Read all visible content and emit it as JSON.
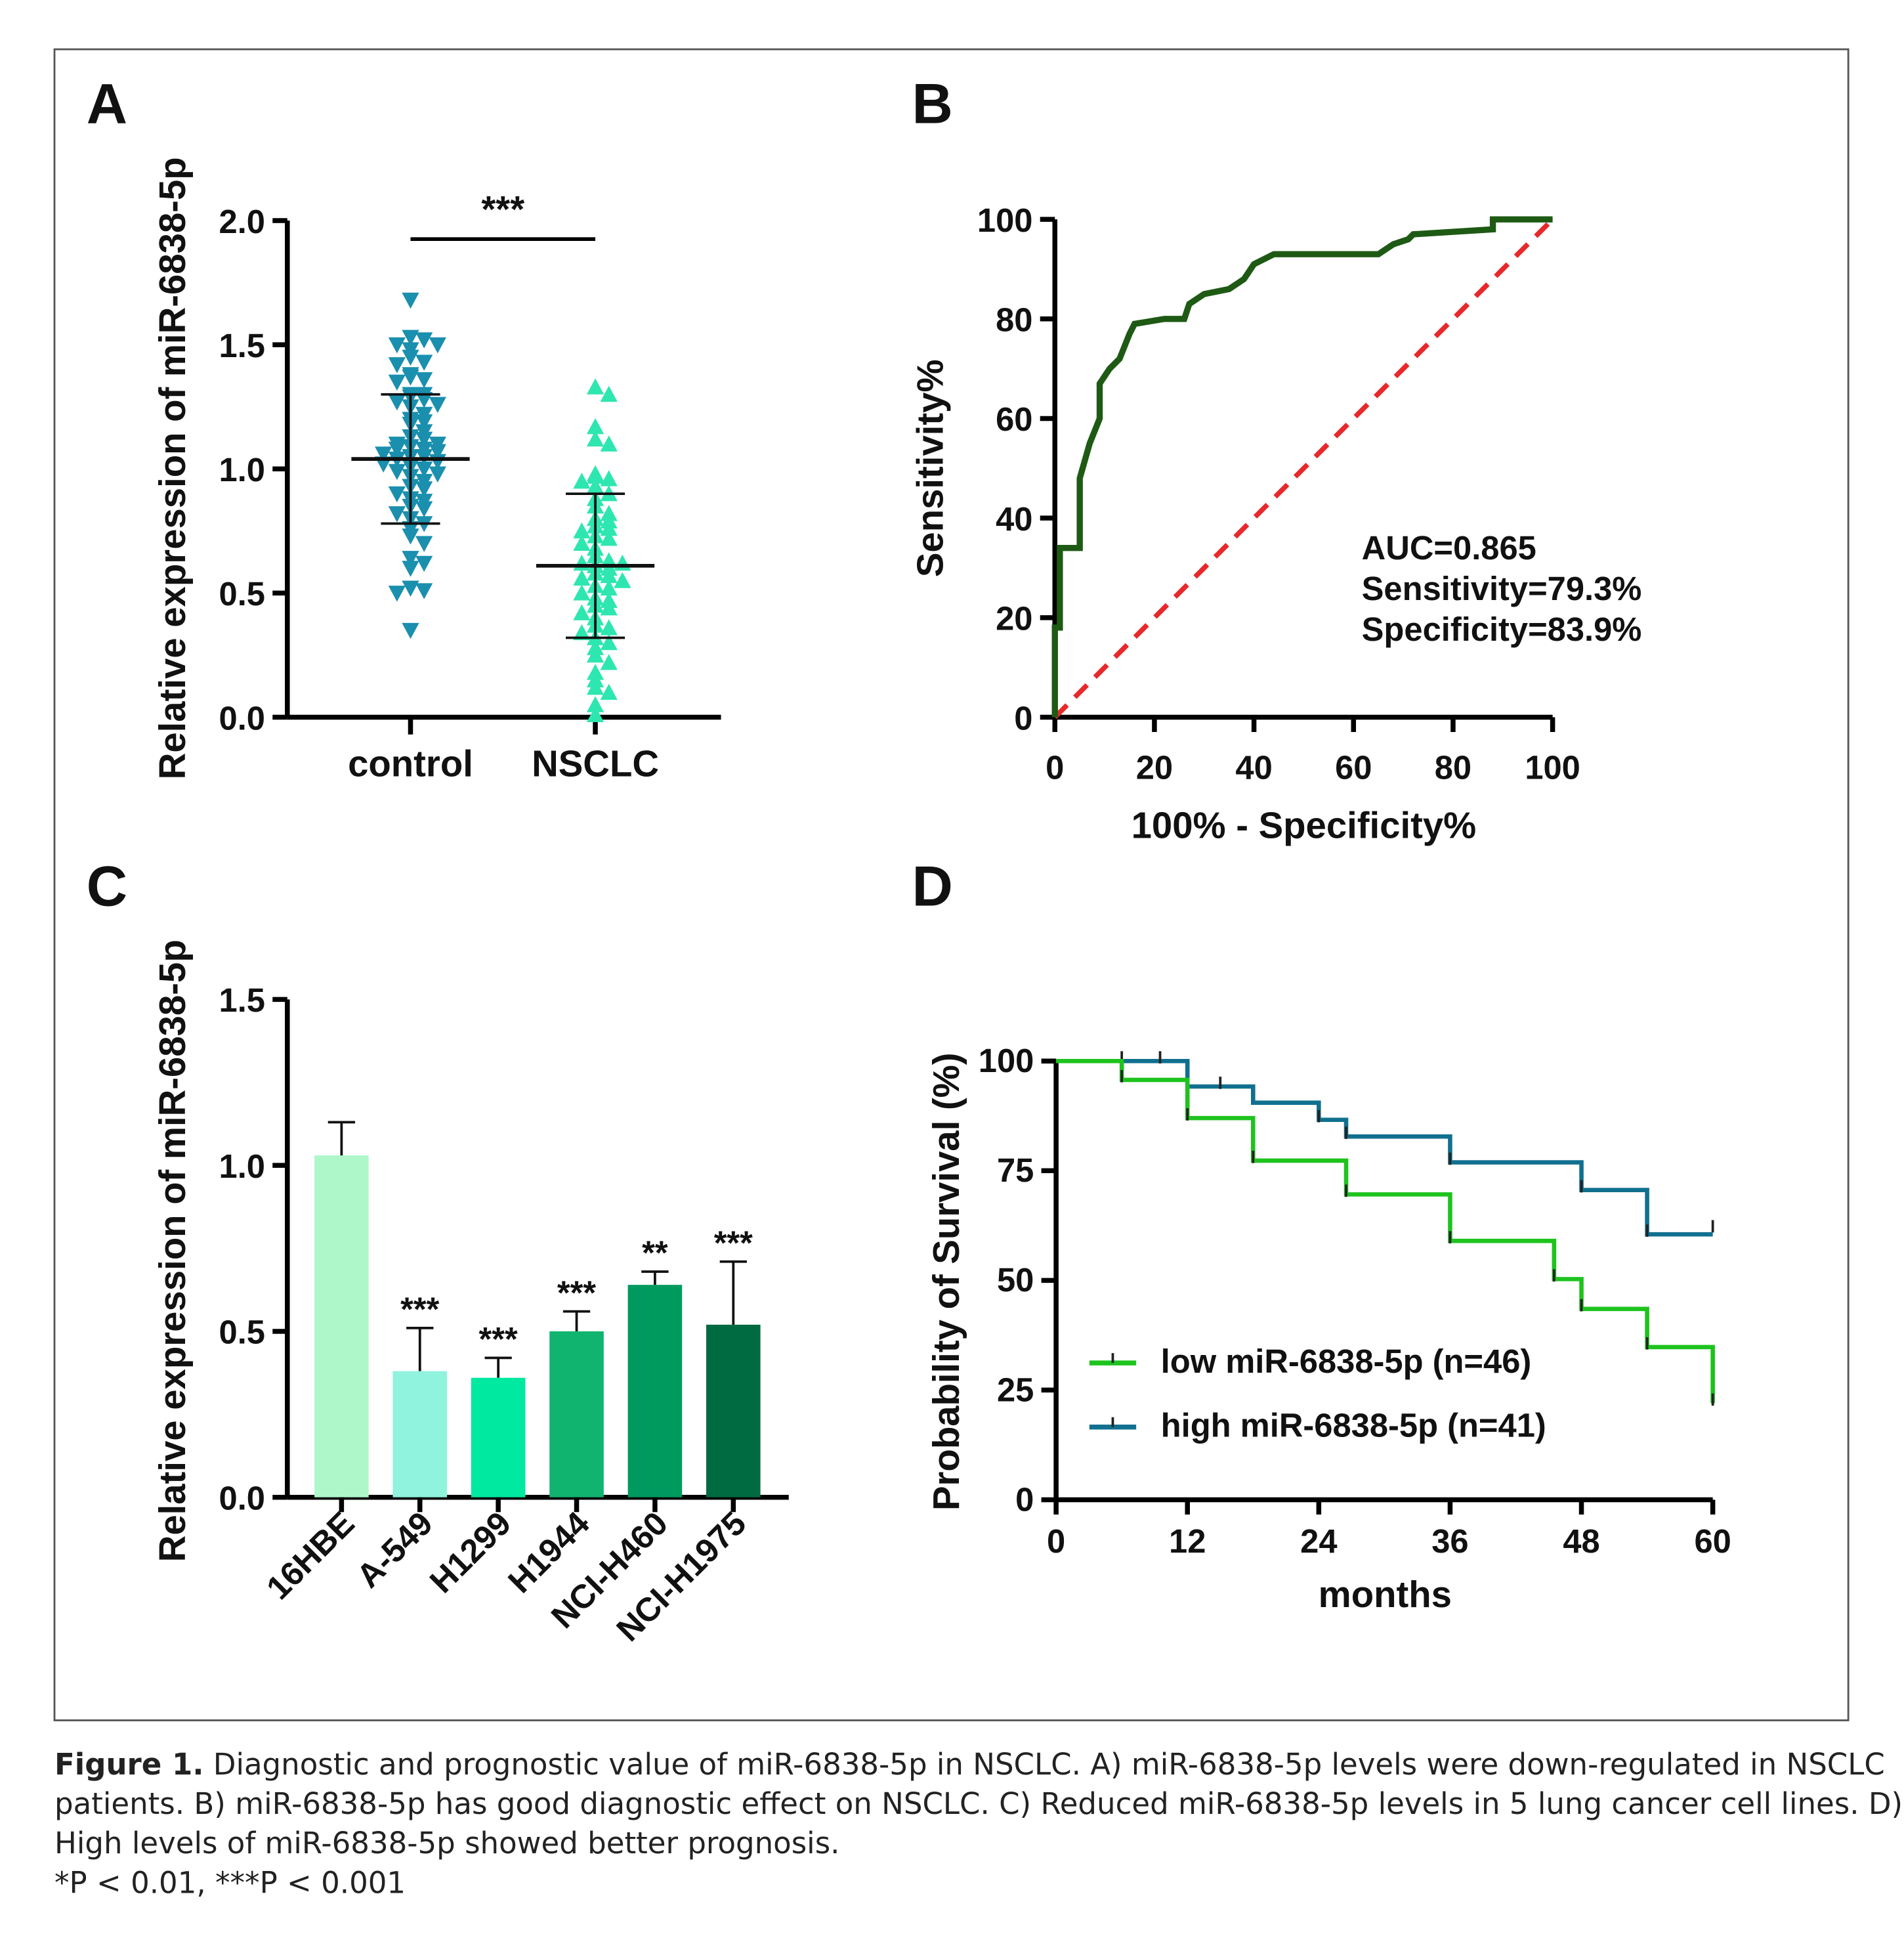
{
  "panels": {
    "a": "A",
    "b": "B",
    "c": "C",
    "d": "D"
  },
  "chart_data": [
    {
      "type": "scatter",
      "panel": "A",
      "ylabel": "Relative expression of miR-6838-5p",
      "categories": [
        "control",
        "NSCLC"
      ],
      "ylim": [
        0,
        2.0
      ],
      "yticks": [
        "0.0",
        "0.5",
        "1.0",
        "1.5",
        "2.0"
      ],
      "significance": "***",
      "colors": [
        "#1a8fae",
        "#2ee6b0"
      ],
      "series": [
        {
          "values": [
            1.68,
            1.53,
            1.52,
            1.5,
            1.5,
            1.48,
            1.45,
            1.43,
            1.42,
            1.38,
            1.37,
            1.36,
            1.35,
            1.3,
            1.3,
            1.29,
            1.28,
            1.27,
            1.26,
            1.25,
            1.22,
            1.2,
            1.19,
            1.18,
            1.15,
            1.13,
            1.12,
            1.1,
            1.1,
            1.09,
            1.08,
            1.08,
            1.07,
            1.06,
            1.05,
            1.05,
            1.04,
            1.03,
            1.02,
            1.01,
            1.0,
            0.99,
            0.98,
            0.97,
            0.95,
            0.93,
            0.92,
            0.9,
            0.88,
            0.87,
            0.85,
            0.84,
            0.82,
            0.8,
            0.78,
            0.76,
            0.73,
            0.7,
            0.64,
            0.62,
            0.6,
            0.52,
            0.51,
            0.5,
            0.35
          ],
          "mean": 1.04,
          "sd_low": 0.78,
          "sd_high": 1.3
        },
        {
          "values": [
            1.33,
            1.3,
            1.17,
            1.12,
            1.1,
            0.98,
            0.97,
            0.96,
            0.95,
            0.93,
            0.9,
            0.88,
            0.85,
            0.82,
            0.8,
            0.79,
            0.77,
            0.76,
            0.75,
            0.73,
            0.72,
            0.7,
            0.68,
            0.65,
            0.63,
            0.62,
            0.62,
            0.61,
            0.6,
            0.58,
            0.57,
            0.56,
            0.55,
            0.53,
            0.52,
            0.5,
            0.48,
            0.47,
            0.45,
            0.44,
            0.42,
            0.4,
            0.37,
            0.36,
            0.34,
            0.32,
            0.3,
            0.28,
            0.25,
            0.22,
            0.18,
            0.15,
            0.12,
            0.1,
            0.05,
            0.01
          ],
          "mean": 0.61,
          "sd_low": 0.32,
          "sd_high": 0.9
        }
      ]
    },
    {
      "type": "line",
      "panel": "B",
      "xlabel": "100% - Specificity%",
      "ylabel": "Sensitivity%",
      "xlim": [
        0,
        100
      ],
      "ylim": [
        0,
        100
      ],
      "xticks": [
        "0",
        "20",
        "40",
        "60",
        "80",
        "100"
      ],
      "yticks": [
        "0",
        "20",
        "40",
        "60",
        "80",
        "100"
      ],
      "roc_color": "#1e5a14",
      "reference_color": "#e8282a",
      "roc": [
        [
          0,
          0
        ],
        [
          0,
          18
        ],
        [
          1,
          18
        ],
        [
          1,
          34
        ],
        [
          5,
          34
        ],
        [
          5,
          48
        ],
        [
          7,
          55
        ],
        [
          9,
          60
        ],
        [
          9,
          67
        ],
        [
          11,
          70
        ],
        [
          13,
          72
        ],
        [
          15,
          77
        ],
        [
          16,
          79
        ],
        [
          22,
          80
        ],
        [
          26,
          80
        ],
        [
          27,
          83
        ],
        [
          30,
          85
        ],
        [
          35,
          86
        ],
        [
          38,
          88
        ],
        [
          40,
          91
        ],
        [
          44,
          93
        ],
        [
          65,
          93
        ],
        [
          68,
          95
        ],
        [
          71,
          96
        ],
        [
          72,
          97
        ],
        [
          88,
          98
        ],
        [
          88,
          100
        ],
        [
          100,
          100
        ]
      ],
      "annotations": [
        "AUC=0.865",
        "Sensitivity=79.3%",
        "Specificity=83.9%"
      ]
    },
    {
      "type": "bar",
      "panel": "C",
      "ylabel": "Relative expression of miR-6838-5p",
      "ylim": [
        0,
        1.5
      ],
      "yticks": [
        "0.0",
        "0.5",
        "1.0",
        "1.5"
      ],
      "categories": [
        "16HBE",
        "A-549",
        "H1299",
        "H1944",
        "NCI-H460",
        "NCI-H1975"
      ],
      "values": [
        1.03,
        0.38,
        0.36,
        0.5,
        0.64,
        0.52
      ],
      "error_upper": [
        1.13,
        0.51,
        0.42,
        0.56,
        0.68,
        0.71
      ],
      "significance": [
        "",
        "***",
        "***",
        "***",
        "**",
        "***"
      ],
      "colors": [
        "#aef7c9",
        "#8ff3dd",
        "#00e9a0",
        "#10b46e",
        "#009a5f",
        "#006b41"
      ]
    },
    {
      "type": "line",
      "panel": "D",
      "xlabel": "months",
      "ylabel": "Probability of Survival (%)",
      "xlim": [
        0,
        60
      ],
      "ylim": [
        0,
        100
      ],
      "xticks": [
        "0",
        "12",
        "24",
        "36",
        "48",
        "60"
      ],
      "yticks": [
        "0",
        "25",
        "50",
        "75",
        "100"
      ],
      "legend": "inside-bottom-left",
      "series": [
        {
          "name": "low   miR-6838-5p (n=46)",
          "color": "#1ec31e",
          "steps": [
            [
              0,
              100
            ],
            [
              6,
              95.7
            ],
            [
              12,
              87
            ],
            [
              18,
              77.3
            ],
            [
              26.5,
              69.6
            ],
            [
              36,
              59
            ],
            [
              45.5,
              50.3
            ],
            [
              48,
              43.5
            ],
            [
              54,
              34.8
            ],
            [
              60,
              22
            ]
          ],
          "censored": [
            [
              6,
              95.7
            ],
            [
              12,
              87
            ],
            [
              18,
              77.3
            ],
            [
              26.5,
              69.6
            ],
            [
              36,
              59
            ],
            [
              45.5,
              50.3
            ],
            [
              48,
              43.5
            ],
            [
              54,
              34.8
            ],
            [
              60,
              22
            ]
          ]
        },
        {
          "name": "high miR-6838-5p (n=41)",
          "color": "#11708f",
          "steps": [
            [
              0,
              100
            ],
            [
              12,
              94.2
            ],
            [
              18,
              90.5
            ],
            [
              24,
              86.6
            ],
            [
              26.5,
              82.8
            ],
            [
              36,
              76.9
            ],
            [
              48,
              70.6
            ],
            [
              54,
              60.5
            ],
            [
              60,
              60.5
            ]
          ],
          "censored": [
            [
              6,
              100
            ],
            [
              9.5,
              100
            ],
            [
              15,
              94.2
            ],
            [
              24,
              86.6
            ],
            [
              26.5,
              82.8
            ],
            [
              36,
              76.9
            ],
            [
              48,
              70.6
            ],
            [
              54,
              60.5
            ],
            [
              60,
              61.5
            ]
          ]
        }
      ]
    }
  ],
  "caption": {
    "label": "Figure 1.",
    "line1": " Diagnostic and prognostic value of miR-6838-5p in NSCLC. A) miR-6838-5p levels were down-regulated in NSCLC",
    "line2": "patients. B) miR-6838-5p has good diagnostic effect on NSCLC. C) Reduced miR-6838-5p levels in 5 lung cancer cell lines. D)",
    "line3": "High levels of miR-6838-5p showed better prognosis.",
    "line4": "*P < 0.01, ***P < 0.001"
  }
}
